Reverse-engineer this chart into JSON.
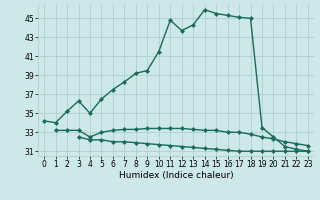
{
  "line1": {
    "x": [
      0,
      1,
      2,
      3,
      4,
      5,
      6,
      7,
      8,
      9,
      10,
      11,
      12,
      13,
      14,
      15,
      16,
      17,
      18,
      19,
      20,
      21,
      22,
      23
    ],
    "y": [
      34.2,
      34.0,
      35.2,
      36.3,
      35.0,
      36.5,
      37.5,
      38.3,
      39.2,
      39.5,
      41.5,
      44.8,
      43.7,
      44.3,
      45.9,
      45.5,
      45.3,
      45.1,
      45.0,
      33.5,
      32.5,
      31.5,
      31.2,
      31.0
    ]
  },
  "line2": {
    "x": [
      1,
      2,
      3,
      4,
      5,
      6,
      7,
      8,
      9,
      10,
      11,
      12,
      13,
      14,
      15,
      16,
      17,
      18,
      19,
      20,
      21,
      22,
      23
    ],
    "y": [
      33.2,
      33.2,
      33.2,
      32.5,
      33.0,
      33.2,
      33.3,
      33.3,
      33.4,
      33.4,
      33.4,
      33.4,
      33.3,
      33.2,
      33.2,
      33.0,
      33.0,
      32.8,
      32.5,
      32.3,
      32.0,
      31.8,
      31.6
    ]
  },
  "line3": {
    "x": [
      3,
      4,
      5,
      6,
      7,
      8,
      9,
      10,
      11,
      12,
      13,
      14,
      15,
      16,
      17,
      18,
      19,
      20,
      21,
      22,
      23
    ],
    "y": [
      32.5,
      32.2,
      32.2,
      32.0,
      32.0,
      31.9,
      31.8,
      31.7,
      31.6,
      31.5,
      31.4,
      31.3,
      31.2,
      31.1,
      31.0,
      31.0,
      31.0,
      31.0,
      31.0,
      31.0,
      31.0
    ]
  },
  "line_color": "#1a6b5a",
  "bg_color": "#cce8e8",
  "grid_color": "#aacccc",
  "xlabel": "Humidex (Indice chaleur)",
  "xlim": [
    -0.5,
    23.5
  ],
  "ylim": [
    30.5,
    46.5
  ],
  "yticks": [
    31,
    33,
    35,
    37,
    39,
    41,
    43,
    45
  ],
  "xticks": [
    0,
    1,
    2,
    3,
    4,
    5,
    6,
    7,
    8,
    9,
    10,
    11,
    12,
    13,
    14,
    15,
    16,
    17,
    18,
    19,
    20,
    21,
    22,
    23
  ],
  "marker": "D",
  "markersize": 2.0,
  "linewidth": 1.0,
  "xlabel_fontsize": 6.5,
  "tick_fontsize": 5.5
}
